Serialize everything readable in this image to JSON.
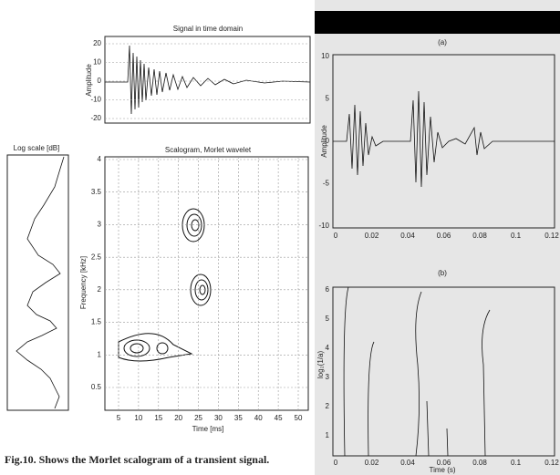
{
  "left": {
    "time_plot": {
      "title": "Signal in time domain",
      "ylabel": "Amplitude",
      "yticks": [
        "20",
        "10",
        "0",
        "-10",
        "-20"
      ]
    },
    "log_plot": {
      "title": "Log scale [dB]"
    },
    "scalogram": {
      "title": "Scalogram, Morlet wavelet",
      "ylabel": "Frequency [kHz]",
      "xlabel": "Time [ms]",
      "yticks": [
        "4",
        "3.5",
        "3",
        "2.5",
        "2",
        "1.5",
        "1",
        "0.5"
      ],
      "xticks": [
        "5",
        "10",
        "15",
        "20",
        "25",
        "30",
        "35",
        "40",
        "45",
        "50"
      ]
    },
    "caption": "Fig.10. Shows the  Morlet scalogram of a transient signal."
  },
  "right": {
    "plot_a": {
      "label": "(a)",
      "ylabel": "Amplitude",
      "yticks": [
        "10",
        "5",
        "0",
        "-5",
        "-10"
      ],
      "xticks": [
        "0",
        "0.02",
        "0.04",
        "0.06",
        "0.08",
        "0.1",
        "0.12"
      ]
    },
    "plot_b": {
      "label": "(b)",
      "ylabel": "log₂(1/a)",
      "xlabel": "Time (s)",
      "yticks": [
        "6",
        "5",
        "4",
        "3",
        "2",
        "1"
      ],
      "xticks": [
        "0",
        "0.02",
        "0.04",
        "0.06",
        "0.08",
        "0.1",
        "0.12"
      ]
    }
  }
}
